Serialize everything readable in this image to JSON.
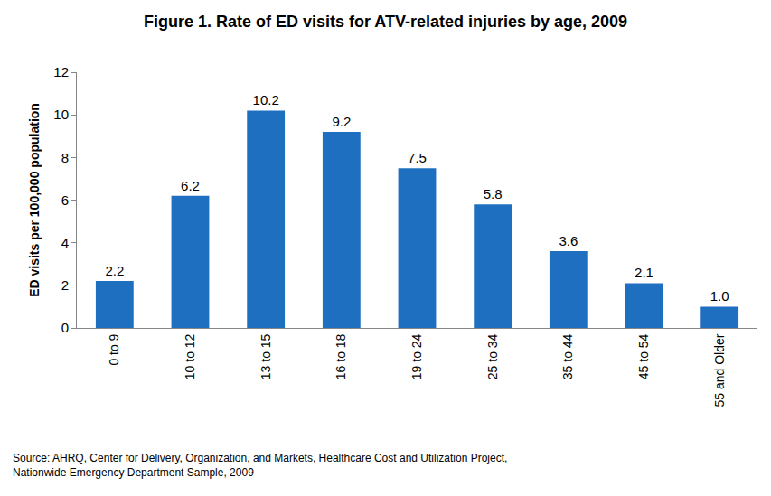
{
  "chart_data": {
    "type": "bar",
    "title": "Figure 1. Rate of ED visits for ATV-related injuries by age, 2009",
    "y_label": "ED visits per 100,000 population",
    "categories": [
      "0 to 9",
      "10 to 12",
      "13 to 15",
      "16 to 18",
      "19 to 24",
      "25 to 34",
      "35 to 44",
      "45 to 54",
      "55 and Older"
    ],
    "values": [
      2.2,
      6.2,
      10.2,
      9.2,
      7.5,
      5.8,
      3.6,
      2.1,
      1.0
    ],
    "value_labels": [
      "2.2",
      "6.2",
      "10.2",
      "9.2",
      "7.5",
      "5.8",
      "3.6",
      "2.1",
      "1.0"
    ],
    "color": "#1f6fc0",
    "ylim": [
      0,
      12
    ],
    "yticks": [
      0,
      2,
      4,
      6,
      8,
      10,
      12
    ],
    "grid": false,
    "data_labels": true,
    "annotations": [
      "Source: AHRQ, Center for Delivery, Organization, and Markets, Healthcare Cost and Utilization Project,",
      "Nationwide Emergency Department Sample, 2009"
    ]
  }
}
